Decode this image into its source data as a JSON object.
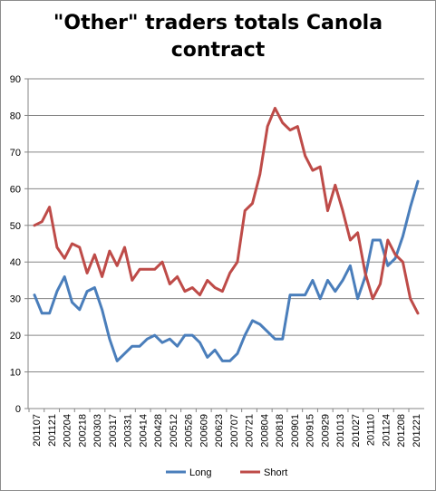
{
  "chart_data": {
    "type": "line",
    "title_lines": [
      "\"Other\" traders totals Canola",
      "contract"
    ],
    "xlabel": "",
    "ylabel": "",
    "ylim": [
      0,
      90
    ],
    "yticks": [
      0,
      10,
      20,
      30,
      40,
      50,
      60,
      70,
      80,
      90
    ],
    "grid": "horizontal",
    "legend_position": "bottom",
    "x_tick_labels": [
      "201107",
      "201121",
      "200204",
      "200218",
      "200303",
      "200317",
      "200331",
      "200414",
      "200428",
      "200512",
      "200526",
      "200609",
      "200623",
      "200707",
      "200721",
      "200804",
      "200818",
      "200901",
      "200915",
      "200929",
      "201013",
      "201027",
      "201110",
      "201124",
      "201208",
      "201221"
    ],
    "series": [
      {
        "name": "Long",
        "color": "#4a7ebb",
        "values": [
          31,
          26,
          26,
          32,
          36,
          29,
          27,
          32,
          33,
          27,
          19,
          13,
          15,
          17,
          17,
          19,
          20,
          18,
          19,
          17,
          20,
          20,
          18,
          14,
          16,
          13,
          13,
          15,
          20,
          24,
          23,
          21,
          19,
          19,
          31,
          31,
          31,
          35,
          30,
          35,
          32,
          35,
          39,
          30,
          36,
          46,
          46,
          39,
          41,
          47,
          55,
          62
        ]
      },
      {
        "name": "Short",
        "color": "#be4b48",
        "values": [
          50,
          51,
          55,
          44,
          41,
          45,
          44,
          37,
          42,
          36,
          43,
          39,
          44,
          35,
          38,
          38,
          38,
          40,
          34,
          36,
          32,
          33,
          31,
          35,
          33,
          32,
          37,
          40,
          54,
          56,
          64,
          77,
          82,
          78,
          76,
          77,
          69,
          65,
          66,
          54,
          61,
          54,
          46,
          48,
          37,
          30,
          34,
          46,
          42,
          40,
          30,
          26
        ]
      }
    ]
  }
}
